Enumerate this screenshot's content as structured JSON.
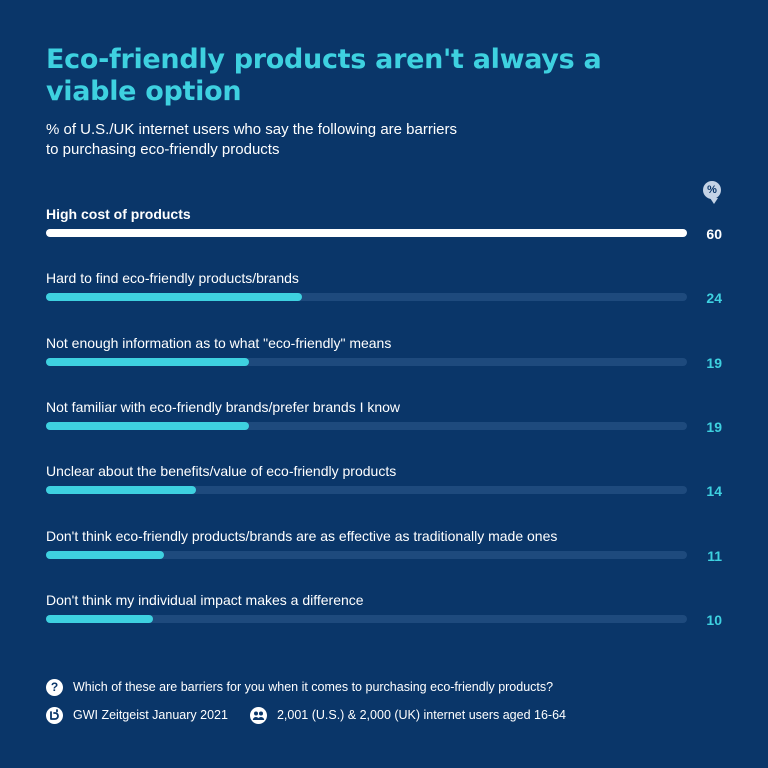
{
  "header": {
    "title": "Eco-friendly products aren't always a viable option",
    "subtitle": "% of U.S./UK internet users who say the following are barriers to purchasing eco-friendly products",
    "unit_badge": "%"
  },
  "chart_data": {
    "type": "bar",
    "orientation": "horizontal",
    "title": "Eco-friendly products aren't always a viable option",
    "ylabel": "%",
    "xlim": [
      0,
      60
    ],
    "categories": [
      "High cost of products",
      "Hard to find eco-friendly products/brands",
      "Not enough information as to what \"eco-friendly\" means",
      "Not familiar with eco-friendly brands/prefer brands I know",
      "Unclear about the benefits/value of eco-friendly products",
      "Don't think eco-friendly products/brands are as effective as traditionally made ones",
      "Don't think my individual impact makes a difference"
    ],
    "values": [
      60,
      24,
      19,
      19,
      14,
      11,
      10
    ],
    "highlight_index": 0
  },
  "footer": {
    "question_icon": "question-icon",
    "question": "Which of these are barriers for you when it comes to purchasing eco-friendly products?",
    "source_icon": "gwi-logo-icon",
    "source": "GWI Zeitgeist January 2021",
    "sample_icon": "people-icon",
    "sample": "2,001 (U.S.) & 2,000 (UK) internet users aged 16-64"
  },
  "colors": {
    "background": "#0a3669",
    "accent": "#3ed1e0",
    "highlight": "#ffffff",
    "track": "#1e4a7d"
  }
}
